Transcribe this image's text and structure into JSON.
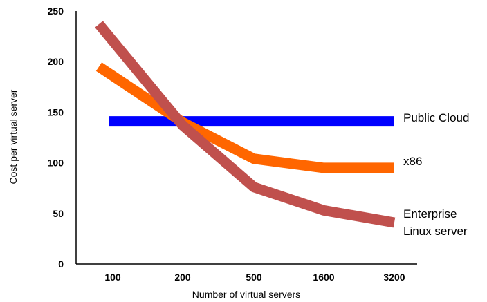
{
  "chart_data": {
    "type": "line",
    "categories": [
      "100",
      "200",
      "500",
      "1600",
      "3200"
    ],
    "series": [
      {
        "name": "Public Cloud",
        "label_lines": [
          "Public Cloud"
        ],
        "color": "#0000ff",
        "values": [
          141,
          141,
          141,
          141,
          141
        ]
      },
      {
        "name": "x86",
        "label_lines": [
          "x86"
        ],
        "color": "#ff6600",
        "values": [
          195,
          140,
          104,
          95,
          95
        ],
        "left_value": 195
      },
      {
        "name": "Enterprise Linux server",
        "label_lines": [
          "Enterprise",
          "Linux server"
        ],
        "color": "#c0504d",
        "values": [
          237,
          137,
          76,
          53,
          41
        ],
        "left_value": 237
      }
    ],
    "xlabel": "Number of virtual servers",
    "ylabel": "Cost per virtual server",
    "ylim": [
      0,
      250
    ],
    "yticks": [
      0,
      50,
      100,
      150,
      200,
      250
    ],
    "grid": false,
    "legend": "inline-right"
  }
}
